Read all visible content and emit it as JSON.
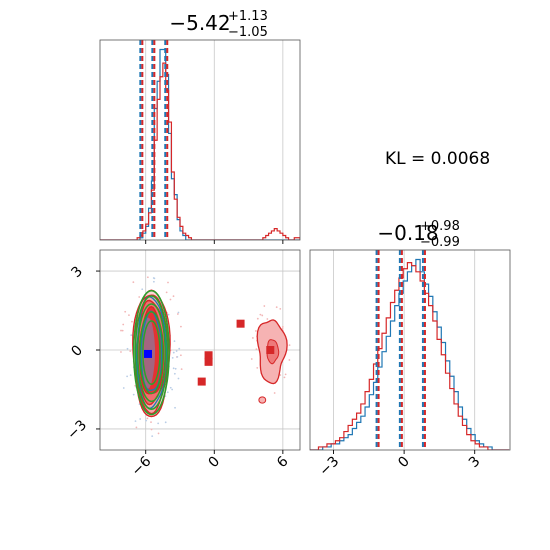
{
  "colors": {
    "blue": "#1f77b4",
    "red": "#d62728",
    "red_fill": "#f4a6a6",
    "green": "#2ca02c",
    "grid": "#c8c8c8"
  },
  "kl_text": "KL = 0.0068",
  "chart_data": [
    {
      "type": "histogram",
      "panel": "top-left",
      "title": {
        "median": "−5.42",
        "upper": "+1.13",
        "lower": "−1.05"
      },
      "xlim": [
        -10,
        7.5
      ],
      "xticks": [
        -6,
        0,
        6
      ],
      "quantile_lines": [
        -6.47,
        -5.42,
        -4.29
      ],
      "bins_start": -10,
      "bin_width": 0.25,
      "series": [
        {
          "name": "",
          "color": "blue",
          "values": [
            0,
            0,
            0,
            0,
            0,
            0,
            0,
            0,
            0,
            0,
            0,
            0,
            0,
            0,
            1,
            3,
            6,
            14,
            26,
            58,
            70,
            84,
            84,
            73,
            47,
            27,
            20,
            9,
            4,
            2,
            0,
            0,
            0,
            0,
            0,
            0,
            0,
            0,
            0,
            0,
            0,
            0,
            0,
            0,
            0,
            0,
            0,
            0,
            0,
            0,
            0,
            0,
            0,
            0,
            0,
            0,
            0,
            0,
            0,
            0,
            0,
            0,
            0,
            0,
            0,
            0,
            0,
            0,
            0,
            0
          ]
        },
        {
          "name": "",
          "color": "red",
          "values": [
            0,
            0,
            0,
            0,
            0,
            0,
            0,
            0,
            0,
            0,
            0,
            0,
            0,
            1,
            2,
            4,
            7,
            12,
            22,
            44,
            62,
            72,
            78,
            66,
            52,
            30,
            18,
            10,
            6,
            3,
            2,
            1,
            0,
            0,
            0,
            0,
            0,
            0,
            0,
            0,
            0,
            0,
            0,
            0,
            0,
            0,
            0,
            0,
            0,
            0,
            0,
            0,
            0,
            0,
            0,
            0,
            0,
            1,
            2,
            3,
            4,
            5,
            4,
            3,
            2,
            1,
            0,
            0,
            1,
            1
          ]
        }
      ]
    },
    {
      "type": "histogram",
      "panel": "bottom-right",
      "title": {
        "median": "−0.18",
        "upper": "+0.98",
        "lower": "−0.99"
      },
      "xlim": [
        -4,
        4.5
      ],
      "xticks": [
        -3,
        0,
        3
      ],
      "quantile_lines": [
        -1.17,
        -0.18,
        0.8
      ],
      "bins_start": -4,
      "bin_width": 0.18,
      "series": [
        {
          "name": "",
          "color": "blue",
          "values": [
            0,
            0,
            0,
            1,
            1,
            2,
            2,
            3,
            4,
            5,
            7,
            9,
            11,
            14,
            18,
            22,
            27,
            32,
            37,
            42,
            47,
            51,
            55,
            58,
            60,
            62,
            58,
            54,
            50,
            45,
            40,
            35,
            29,
            24,
            19,
            14,
            10,
            7,
            5,
            3,
            2,
            1,
            1,
            0,
            0,
            0,
            0
          ]
        },
        {
          "name": "",
          "color": "red",
          "values": [
            0,
            0,
            1,
            1,
            2,
            2,
            3,
            4,
            6,
            8,
            10,
            12,
            15,
            19,
            23,
            28,
            33,
            38,
            43,
            48,
            52,
            56,
            59,
            61,
            60,
            58,
            55,
            51,
            47,
            42,
            36,
            31,
            25,
            20,
            15,
            11,
            8,
            5,
            3,
            2,
            1,
            1,
            0,
            0,
            0,
            0,
            0
          ]
        }
      ]
    },
    {
      "type": "scatter-contour",
      "panel": "bottom-left",
      "xlim": [
        -10,
        7.5
      ],
      "ylim": [
        -3.8,
        3.8
      ],
      "xticks": [
        -6,
        0,
        6
      ],
      "yticks": [
        -3,
        0,
        3
      ],
      "blue_marker": [
        -5.8,
        -0.15
      ],
      "red_markers": [
        [
          -0.5,
          -0.2
        ],
        [
          -0.5,
          -0.45
        ],
        [
          -1.1,
          -1.2
        ],
        [
          2.3,
          1.0
        ],
        [
          4.9,
          0.0
        ]
      ],
      "contours": {
        "center": [
          -5.5,
          -0.1
        ],
        "red_levels": [
          [
            1.6,
            2.4
          ],
          [
            1.45,
            2.25
          ],
          [
            1.25,
            1.95
          ],
          [
            1.05,
            1.65
          ]
        ],
        "green_levels": [
          [
            1.55,
            2.35
          ],
          [
            1.4,
            2.15
          ],
          [
            1.2,
            1.85
          ],
          [
            1.0,
            1.55
          ],
          [
            0.75,
            1.2
          ]
        ],
        "blue_levels": [
          [
            1.3,
            2.1
          ],
          [
            0.9,
            1.5
          ]
        ],
        "secondary_blob": {
          "center": [
            5.0,
            0.0
          ],
          "rx": 1.2,
          "ry": 1.2
        }
      }
    }
  ]
}
